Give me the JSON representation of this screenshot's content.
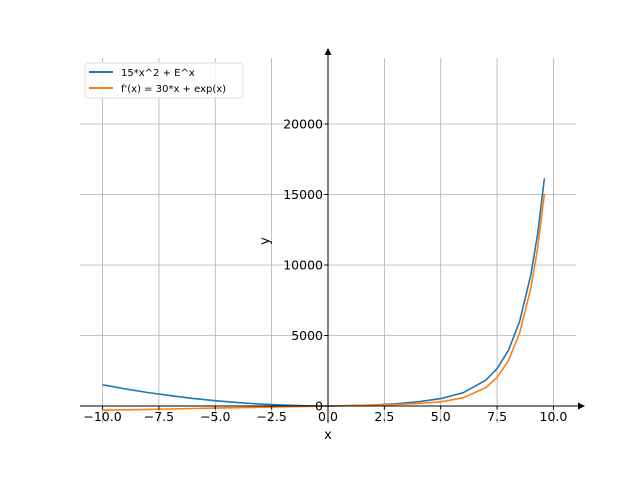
{
  "chart_data": {
    "type": "line",
    "title": "",
    "xlabel": "x",
    "ylabel": "y",
    "xlim": [
      -11,
      11
    ],
    "ylim": [
      -1206,
      24680
    ],
    "grid": true,
    "legend_position": "top-left",
    "xticks": [
      -10,
      -7.5,
      -5,
      -2.5,
      0,
      2.5,
      5,
      7.5,
      10
    ],
    "xtick_labels": [
      "−10.0",
      "−7.5",
      "−5.0",
      "−2.5",
      "0.0",
      "2.5",
      "5.0",
      "7.5",
      "10.0"
    ],
    "yticks": [
      0,
      5000,
      10000,
      15000,
      20000
    ],
    "ytick_labels": [
      "0",
      "5000",
      "10000",
      "15000",
      "20000"
    ],
    "x": [
      -10,
      -9,
      -8,
      -7,
      -6,
      -5,
      -4,
      -3,
      -2,
      -1,
      0,
      1,
      2,
      3,
      4,
      5,
      6,
      7,
      7.5,
      8,
      8.5,
      9,
      9.3,
      9.6
    ],
    "series": [
      {
        "name": "15*x^2 + E^x",
        "color": "#1f77b4",
        "values": [
          1500,
          1215,
          960,
          735,
          540,
          375,
          240.02,
          135.05,
          60.14,
          15.37,
          1,
          17.72,
          67.39,
          155.09,
          294.6,
          523.4,
          943.4,
          1831.6,
          2651.8,
          3941.0,
          5998.6,
          9318.1,
          12235,
          16147.2
        ]
      },
      {
        "name": "f'(x) = 30*x + exp(x)",
        "color": "#ff7f0e",
        "values": [
          -300,
          -270,
          -240,
          -210,
          -180,
          -150,
          -119.98,
          -89.95,
          -59.86,
          -29.63,
          1,
          32.72,
          67.39,
          110.09,
          174.6,
          298.4,
          583.4,
          1306.6,
          2033,
          3221.0,
          5169.8,
          8373.1,
          11217,
          15052.8
        ]
      }
    ]
  }
}
